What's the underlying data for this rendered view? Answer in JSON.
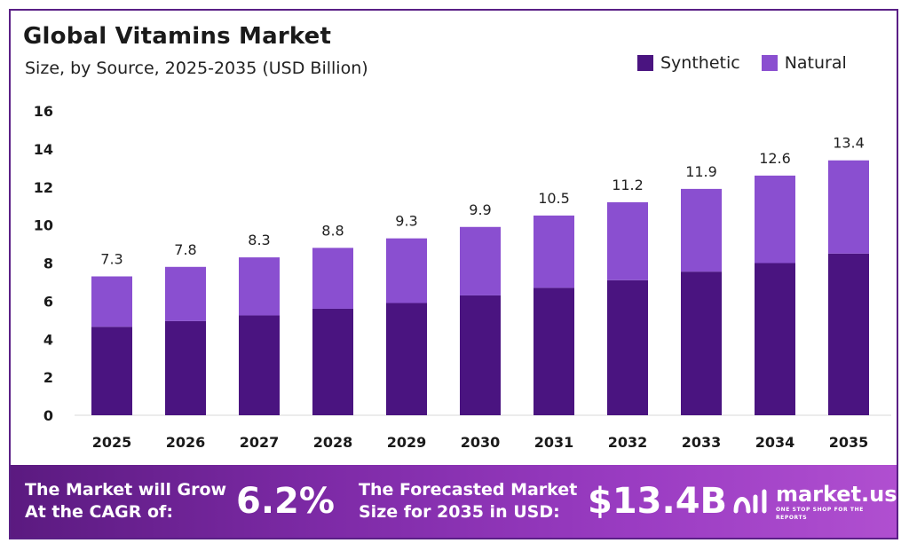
{
  "chart_data": {
    "type": "bar",
    "stacked": true,
    "title": "Global Vitamins Market",
    "subtitle": "Size, by Source, 2025-2035 (USD Billion)",
    "categories": [
      "2025",
      "2026",
      "2027",
      "2028",
      "2029",
      "2030",
      "2031",
      "2032",
      "2033",
      "2034",
      "2035"
    ],
    "series": [
      {
        "name": "Synthetic",
        "color": "#4a1480",
        "values": [
          4.65,
          4.95,
          5.25,
          5.6,
          5.9,
          6.3,
          6.7,
          7.1,
          7.55,
          8.0,
          8.5
        ]
      },
      {
        "name": "Natural",
        "color": "#8a4fd0",
        "values": [
          2.65,
          2.85,
          3.05,
          3.2,
          3.4,
          3.6,
          3.8,
          4.1,
          4.35,
          4.6,
          4.9
        ]
      }
    ],
    "totals": [
      "7.3",
      "7.8",
      "8.3",
      "8.8",
      "9.3",
      "9.9",
      "10.5",
      "11.2",
      "11.9",
      "12.6",
      "13.4"
    ],
    "ylim": [
      0,
      16
    ],
    "yticks": [
      0,
      2,
      4,
      6,
      8,
      10,
      12,
      14,
      16
    ],
    "legend_position": "top-right",
    "grid": false
  },
  "banner": {
    "cagr_label_line1": "The Market will Grow",
    "cagr_label_line2": "At the CAGR of:",
    "cagr_value": "6.2%",
    "forecast_label_line1": "The Forecasted Market",
    "forecast_label_line2": "Size for 2035 in USD:",
    "forecast_value": "$13.4B",
    "logo_name": "market.us",
    "logo_tagline": "ONE STOP SHOP FOR THE REPORTS"
  }
}
